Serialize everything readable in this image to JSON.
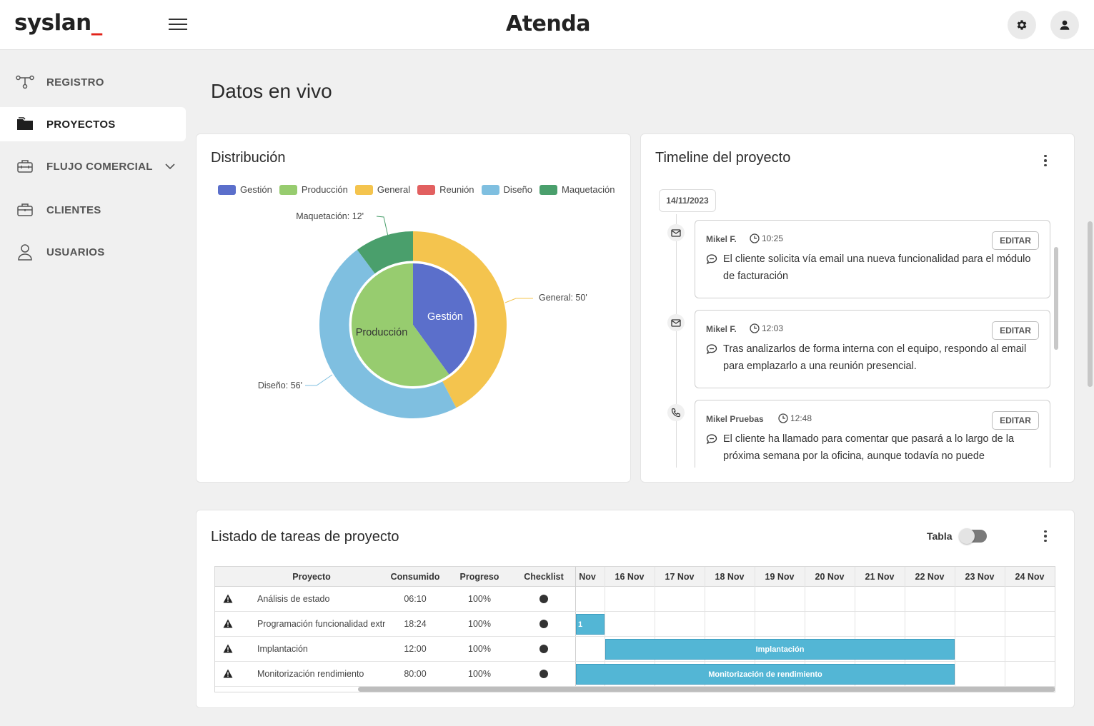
{
  "header": {
    "logo_text": "syslan",
    "logo_suffix": "_",
    "brand": "Atenda",
    "settings_icon": "gear-icon",
    "user_icon": "user-icon"
  },
  "sidebar": {
    "items": [
      {
        "label": "REGISTRO",
        "icon": "network-icon",
        "active": false
      },
      {
        "label": "PROYECTOS",
        "icon": "folder-icon",
        "active": true
      },
      {
        "label": "FLUJO COMERCIAL",
        "icon": "toolbox-icon",
        "active": false,
        "has_submenu": true
      },
      {
        "label": "CLIENTES",
        "icon": "briefcase-icon",
        "active": false
      },
      {
        "label": "USUARIOS",
        "icon": "person-icon",
        "active": false
      }
    ]
  },
  "main": {
    "title": "Datos en vivo",
    "distribution": {
      "title": "Distribución",
      "legend": [
        {
          "name": "Gestión",
          "color": "#5b6fcb"
        },
        {
          "name": "Producción",
          "color": "#97cc6f"
        },
        {
          "name": "General",
          "color": "#f4c44e"
        },
        {
          "name": "Reunión",
          "color": "#e26060"
        },
        {
          "name": "Diseño",
          "color": "#7fbfe0"
        },
        {
          "name": "Maquetación",
          "color": "#4a9f6c"
        }
      ],
      "labels": {
        "gestion": "Gestión",
        "produccion": "Producción",
        "general": "General: 50'",
        "diseno": "Diseño: 56'",
        "maquetacion": "Maquetación: 12'"
      }
    },
    "timeline": {
      "title": "Timeline del proyecto",
      "date": "14/11/2023",
      "edit_label": "EDITAR",
      "entries": [
        {
          "author": "Mikel F.",
          "time": "10:25",
          "icon": "mail-icon",
          "message": "El cliente solicita vía email una nueva funcionalidad para el módulo de facturación"
        },
        {
          "author": "Mikel F.",
          "time": "12:03",
          "icon": "mail-icon",
          "message": "Tras analizarlos de forma interna con el equipo, respondo al email para emplazarlo a una reunión presencial."
        },
        {
          "author": "Mikel Pruebas",
          "time": "12:48",
          "icon": "phone-icon",
          "message": "El cliente ha llamado para comentar que pasará a lo largo de la próxima semana por la oficina, aunque todavía no puede"
        }
      ]
    },
    "tasks": {
      "title": "Listado de tareas de proyecto",
      "toggle_label": "Tabla",
      "toggle_on": false,
      "columns": {
        "proyecto": "Proyecto",
        "consumido": "Consumido",
        "progreso": "Progreso",
        "checklist": "Checklist"
      },
      "days": [
        "Nov",
        "16 Nov",
        "17 Nov",
        "18 Nov",
        "19 Nov",
        "20 Nov",
        "21 Nov",
        "22 Nov",
        "23 Nov",
        "24 Nov"
      ],
      "rows": [
        {
          "name": "Análisis de estado",
          "consumido": "06:10",
          "progreso": "100%",
          "bar_label": "",
          "bar_start_day": null,
          "bar_end_day": null
        },
        {
          "name": "Programación funcionalidad extr",
          "consumido": "18:24",
          "progreso": "100%",
          "bar_label": "1",
          "bar_start_day": 0,
          "bar_end_day": 0.6
        },
        {
          "name": "Implantación",
          "consumido": "12:00",
          "progreso": "100%",
          "bar_label": "Implantación",
          "bar_start_day": 0.6,
          "bar_end_day": 7.6
        },
        {
          "name": "Monitorización rendimiento",
          "consumido": "80:00",
          "progreso": "100%",
          "bar_label": "Monitorización de rendimiento",
          "bar_start_day": 0,
          "bar_end_day": 7.6
        }
      ]
    }
  },
  "chart_data": {
    "type": "pie",
    "title": "Distribución",
    "inner_ring": [
      {
        "name": "Gestión",
        "value": 40,
        "color": "#5b6fcb"
      },
      {
        "name": "Producción",
        "value": 60,
        "color": "#97cc6f"
      }
    ],
    "outer_ring": [
      {
        "name": "General",
        "value": 50,
        "color": "#f4c44e"
      },
      {
        "name": "Reunión",
        "value": 0,
        "color": "#e26060"
      },
      {
        "name": "Diseño",
        "value": 56,
        "color": "#7fbfe0"
      },
      {
        "name": "Maquetación",
        "value": 12,
        "color": "#4a9f6c"
      }
    ],
    "legend_position": "top"
  }
}
